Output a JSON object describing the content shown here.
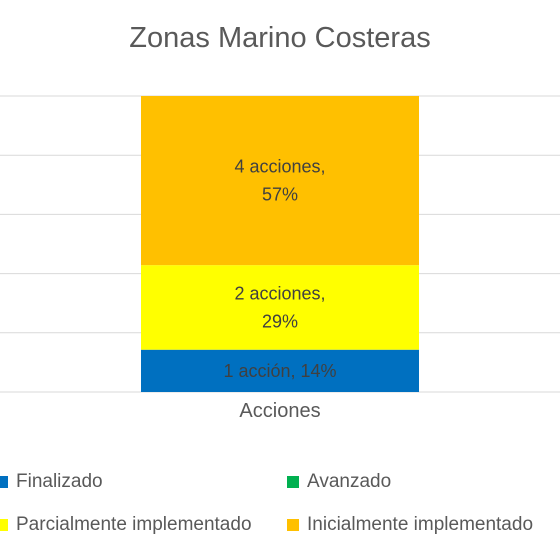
{
  "chart_data": {
    "type": "bar",
    "stacked": true,
    "title": "Zonas Marino Costeras",
    "categories": [
      "Acciones"
    ],
    "series": [
      {
        "name": "Finalizado",
        "values": [
          1
        ],
        "color": "#0070C0",
        "label_lines": [
          "1 acción, 14%"
        ],
        "label_color": "#404040"
      },
      {
        "name": "Avanzado",
        "values": [
          0
        ],
        "color": "#00B050",
        "label_lines": [],
        "label_color": "#404040"
      },
      {
        "name": "Parcialmente implementado",
        "values": [
          2
        ],
        "color": "#FFFF00",
        "label_lines": [
          "2 acciones,",
          "29%"
        ],
        "label_color": "#404040"
      },
      {
        "name": "Inicialmente implementado",
        "values": [
          4
        ],
        "color": "#FFC000",
        "label_lines": [
          "4 acciones,",
          "57%"
        ],
        "label_color": "#404040"
      }
    ],
    "percent_scale": true,
    "grid": true,
    "legend_position": "bottom"
  }
}
